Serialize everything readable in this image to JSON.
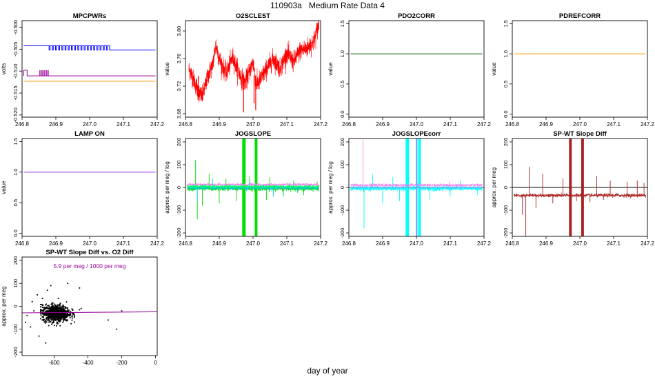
{
  "figure": {
    "title_id": "110903a",
    "title_text": "Medium Rate Data 4",
    "xlabel": "day of year"
  },
  "chart_data": [
    {
      "id": "mpcpwrs",
      "type": "line",
      "title": "MPCPWRs",
      "ylabel": "volts",
      "xlim": [
        246.8,
        247.2
      ],
      "ylim": [
        -0.5205,
        -0.4985
      ],
      "xticks": [
        "246.8",
        "246.9",
        "247.0",
        "247.1",
        "247.2"
      ],
      "yticks": [
        "-0.520",
        "-0.515",
        "-0.510",
        "-0.505",
        "-0.500"
      ],
      "yticks_rotated": true,
      "series": [
        {
          "name": "upper (blue)",
          "color": "#0000ff",
          "kind": "square",
          "high": -0.5042,
          "low": -0.5052,
          "start": 246.805,
          "end": 247.195,
          "toggle_start": 246.88,
          "toggle_end": 247.06
        },
        {
          "name": "middle (purple)",
          "color": "#990099",
          "kind": "flat",
          "value": -0.5111,
          "start": 246.805,
          "end": 247.195,
          "step_start": 246.805,
          "step_end": 246.815,
          "step_value": -0.5098,
          "toggle_start": 246.852,
          "toggle_end": 246.878
        },
        {
          "name": "lower (orange)",
          "color": "#ff9900",
          "kind": "flat",
          "value": -0.5123,
          "start": 246.805,
          "end": 247.195
        }
      ]
    },
    {
      "id": "o2sclest",
      "type": "line",
      "title": "O2SCLEST",
      "ylabel": "value",
      "xlim": [
        246.8,
        247.2
      ],
      "ylim": [
        3.675,
        3.815
      ],
      "xticks": [
        "246.8",
        "246.9",
        "247.0",
        "247.1",
        "247.2"
      ],
      "yticks": [
        "3.68",
        "3.72",
        "3.76",
        "3.80"
      ],
      "yticks_rotated": true,
      "series": [
        {
          "name": "O2SCLEST",
          "color": "#ff0000",
          "kind": "noise",
          "points": [
            [
              246.81,
              3.745
            ],
            [
              246.82,
              3.735
            ],
            [
              246.84,
              3.71
            ],
            [
              246.85,
              3.705
            ],
            [
              246.87,
              3.74
            ],
            [
              246.88,
              3.75
            ],
            [
              246.89,
              3.78
            ],
            [
              246.9,
              3.76
            ],
            [
              246.92,
              3.738
            ],
            [
              246.94,
              3.762
            ],
            [
              246.96,
              3.737
            ],
            [
              246.975,
              3.725
            ],
            [
              246.985,
              3.735
            ],
            [
              247.0,
              3.755
            ],
            [
              247.01,
              3.722
            ],
            [
              247.02,
              3.728
            ],
            [
              247.04,
              3.745
            ],
            [
              247.06,
              3.76
            ],
            [
              247.08,
              3.745
            ],
            [
              247.1,
              3.768
            ],
            [
              247.12,
              3.755
            ],
            [
              247.14,
              3.772
            ],
            [
              247.16,
              3.775
            ],
            [
              247.18,
              3.785
            ],
            [
              247.195,
              3.81
            ]
          ],
          "noise": 0.007,
          "spikes": [
            [
              246.972,
              3.682
            ],
            [
              247.008,
              3.685
            ],
            [
              246.838,
              3.7
            ],
            [
              247.003,
              3.695
            ]
          ]
        }
      ]
    },
    {
      "id": "pdo2corr",
      "type": "line",
      "title": "PDO2CORR",
      "ylabel": "value",
      "xlim": [
        246.8,
        247.2
      ],
      "ylim": [
        -0.05,
        1.55
      ],
      "xticks": [
        "246.8",
        "246.9",
        "247.0",
        "247.1",
        "247.2"
      ],
      "yticks": [
        "0.0",
        "0.5",
        "1.0",
        "1.5"
      ],
      "yticks_rotated": true,
      "series": [
        {
          "name": "PDO2CORR",
          "color": "#006600",
          "kind": "flat",
          "value": 1.0,
          "start": 246.805,
          "end": 247.195
        }
      ]
    },
    {
      "id": "pdrefcorr",
      "type": "line",
      "title": "PDREFCORR",
      "ylabel": "value",
      "xlim": [
        246.8,
        247.2
      ],
      "ylim": [
        -0.05,
        1.55
      ],
      "xticks": [
        "246.8",
        "246.9",
        "247.0",
        "247.1",
        "247.2"
      ],
      "yticks": [
        "0.0",
        "0.5",
        "1.0",
        "1.5"
      ],
      "yticks_rotated": true,
      "series": [
        {
          "name": "PDREFCORR",
          "color": "#ff9900",
          "kind": "flat",
          "value": 1.0,
          "start": 246.805,
          "end": 247.195
        }
      ]
    },
    {
      "id": "lampon",
      "type": "line",
      "title": "LAMP ON",
      "ylabel": "value",
      "xlim": [
        246.8,
        247.2
      ],
      "ylim": [
        -0.05,
        1.55
      ],
      "xticks": [
        "246.8",
        "246.9",
        "247.0",
        "247.1",
        "247.2"
      ],
      "yticks": [
        "0.0",
        "0.5",
        "1.0",
        "1.5"
      ],
      "yticks_rotated": true,
      "series": [
        {
          "name": "LAMP ON",
          "color": "#9933ff",
          "kind": "flat",
          "value": 1.0,
          "start": 246.805,
          "end": 247.195
        }
      ]
    },
    {
      "id": "jogslope",
      "type": "line",
      "title": "JOGSLOPE",
      "ylabel": "approx. per meg / log",
      "xlim": [
        246.8,
        247.2
      ],
      "ylim": [
        -215,
        215
      ],
      "xticks": [
        "246.8",
        "246.9",
        "247.0",
        "247.1",
        "247.2"
      ],
      "yticks": [
        "-200",
        "-100",
        "0",
        "100",
        "200"
      ],
      "yticks_rotated": true,
      "zero_line": false,
      "series": [
        {
          "name": "green spikes",
          "color": "#00dd00",
          "kind": "spiky",
          "base": -5,
          "noise": 5,
          "spikes": [
            [
              246.83,
              120
            ],
            [
              246.835,
              -140
            ],
            [
              246.85,
              -80
            ],
            [
              246.87,
              60
            ],
            [
              246.9,
              -70
            ],
            [
              246.92,
              40
            ],
            [
              246.95,
              -60
            ],
            [
              246.99,
              50
            ],
            [
              247.04,
              -55
            ],
            [
              247.05,
              45
            ],
            [
              247.09,
              -40
            ],
            [
              247.12,
              30
            ],
            [
              247.15,
              -35
            ],
            [
              247.19,
              25
            ]
          ],
          "bands": [
            [
              246.968,
              246.978
            ],
            [
              247.005,
              247.013
            ]
          ]
        },
        {
          "name": "violet",
          "color": "#ee82ee",
          "kind": "spiky",
          "base": 12,
          "noise": 3,
          "spikes": []
        },
        {
          "name": "turquoise",
          "color": "#00cccc",
          "kind": "spiky",
          "base": -2,
          "noise": 4,
          "spikes": [
            [
              246.835,
              -60
            ],
            [
              246.88,
              40
            ],
            [
              246.99,
              30
            ],
            [
              247.06,
              -40
            ]
          ]
        },
        {
          "name": "springgreen",
          "color": "#00ff66",
          "kind": "spiky",
          "base": 4,
          "noise": 3,
          "spikes": []
        }
      ]
    },
    {
      "id": "jogslopecorr",
      "type": "line",
      "title": "JOGSLOPEcorr",
      "ylabel": "approx. per meg / log",
      "xlim": [
        246.8,
        247.2
      ],
      "ylim": [
        -215,
        215
      ],
      "xticks": [
        "246.8",
        "246.9",
        "247.0",
        "247.1",
        "247.2"
      ],
      "yticks": [
        "-200",
        "-100",
        "0",
        "100",
        "200"
      ],
      "yticks_rotated": true,
      "zero_line": true,
      "zero_color": "#008800",
      "series": [
        {
          "name": "cyan",
          "color": "#00ffff",
          "kind": "spiky",
          "base": -5,
          "noise": 5,
          "spikes": [
            [
              246.845,
              -180
            ],
            [
              246.87,
              60
            ],
            [
              246.9,
              -70
            ],
            [
              246.93,
              45
            ],
            [
              246.95,
              -60
            ],
            [
              247.0,
              50
            ],
            [
              247.04,
              -55
            ],
            [
              247.1,
              -40
            ],
            [
              247.13,
              30
            ],
            [
              247.18,
              -35
            ]
          ],
          "bands": [
            [
              246.968,
              246.978
            ],
            [
              247.005,
              247.013
            ]
          ]
        },
        {
          "name": "violet",
          "color": "#ee82ee",
          "kind": "spiky",
          "base": 10,
          "noise": 3,
          "spikes": [
            [
              246.842,
              210
            ]
          ]
        },
        {
          "name": "lightblue",
          "color": "#66b3ff",
          "kind": "spiky",
          "base": 0,
          "noise": 2,
          "spikes": [],
          "bands": [
            [
              246.998,
              247.003
            ]
          ]
        }
      ]
    },
    {
      "id": "spwt",
      "type": "line",
      "title": "SP-WT Slope Diff",
      "ylabel": "approx. per meg",
      "xlim": [
        246.8,
        247.2
      ],
      "ylim": [
        -215,
        215
      ],
      "xticks": [
        "246.8",
        "246.9",
        "247.0",
        "247.1",
        "247.2"
      ],
      "yticks": [
        "-200",
        "-100",
        "0",
        "100",
        "200"
      ],
      "yticks_rotated": true,
      "zero_line": true,
      "zero_color": "#000000",
      "series": [
        {
          "name": "SP-WT",
          "color": "#aa2222",
          "kind": "spiky",
          "base": -35,
          "noise": 4,
          "spikes": [
            [
              246.83,
              -120
            ],
            [
              246.84,
              -215
            ],
            [
              246.85,
              90
            ],
            [
              246.87,
              -90
            ],
            [
              246.89,
              60
            ],
            [
              246.92,
              -70
            ],
            [
              246.95,
              40
            ],
            [
              246.99,
              -60
            ],
            [
              247.03,
              -65
            ],
            [
              247.05,
              50
            ],
            [
              247.07,
              -55
            ],
            [
              247.09,
              30
            ],
            [
              247.11,
              -25
            ],
            [
              247.14,
              25
            ],
            [
              247.17,
              30
            ],
            [
              247.19,
              20
            ]
          ],
          "bands": [
            [
              246.968,
              246.976
            ],
            [
              247.004,
              247.012
            ]
          ]
        }
      ]
    },
    {
      "id": "scatter",
      "type": "scatter",
      "title": "SP-WT Slope Diff vs. O2 Diff",
      "ylabel": "approx. per meg",
      "xlim": [
        -790,
        10
      ],
      "ylim": [
        -215,
        215
      ],
      "xticks": [
        "-600",
        "-400",
        "-200",
        "0"
      ],
      "xtick_values": [
        -600,
        -400,
        -200,
        0
      ],
      "yticks": [
        "-200",
        "-100",
        "0",
        "100",
        "200"
      ],
      "yticks_rotated": true,
      "annotation": "5.9 per meg / 1000 per meg",
      "annotation_color": "#990099",
      "fit": {
        "slope": 0.0059,
        "intercept": -24,
        "color": "#990099"
      },
      "cluster": {
        "cx": -590,
        "cy": -30,
        "sx": 40,
        "sy": 18,
        "n": 900,
        "x_range": [
          -680,
          -480
        ],
        "y_range": [
          -110,
          60
        ]
      },
      "outliers": [
        [
          -770,
          -70
        ],
        [
          -760,
          -40
        ],
        [
          -740,
          -90
        ],
        [
          -730,
          20
        ],
        [
          -720,
          -20
        ],
        [
          -700,
          50
        ],
        [
          -690,
          -130
        ],
        [
          -650,
          -160
        ],
        [
          -640,
          70
        ],
        [
          -620,
          90
        ],
        [
          -520,
          100
        ],
        [
          -450,
          80
        ],
        [
          -280,
          -60
        ],
        [
          -230,
          -100
        ],
        [
          -200,
          -20
        ],
        [
          -450,
          -15
        ],
        [
          -440,
          -10
        ]
      ]
    }
  ]
}
